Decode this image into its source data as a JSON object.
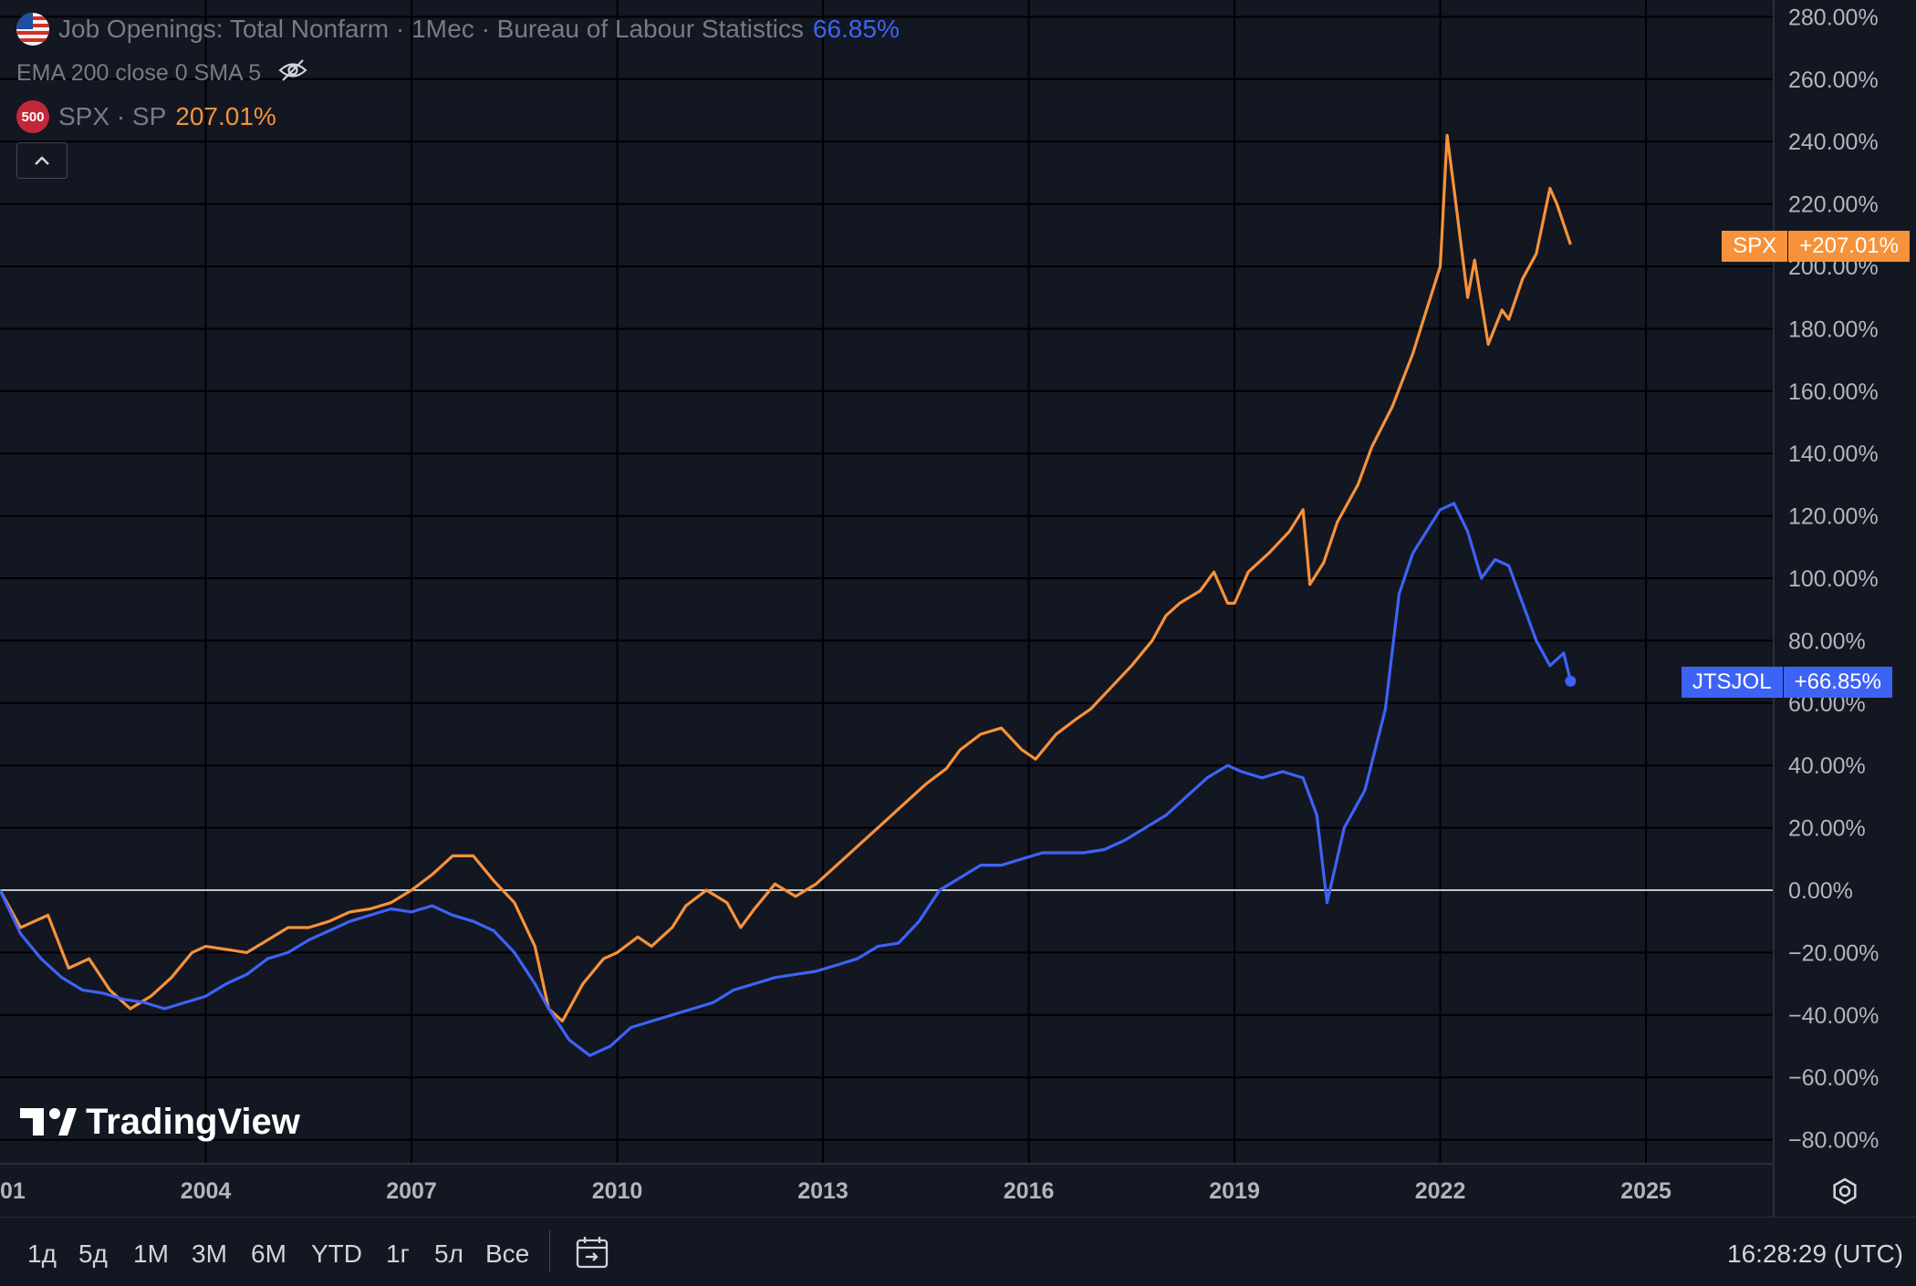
{
  "legend": {
    "main_title": "Job Openings: Total Nonfarm · 1Мес · Bureau of Labour Statistics",
    "main_value": "66.85%",
    "indicators": "EMA 200 close 0 SMA 5",
    "compare_symbol": "SPX · SP",
    "compare_badge": "500",
    "compare_value": "207.01%"
  },
  "price_tags": {
    "spx_name": "SPX",
    "spx_value": "+207.01%",
    "jts_name": "JTSJOL",
    "jts_value": "+66.85%"
  },
  "ranges": [
    "1д",
    "5д",
    "1М",
    "3М",
    "6М",
    "YTD",
    "1г",
    "5л",
    "Все"
  ],
  "clock": "16:28:29 (UTC)",
  "logo_text": "TradingView",
  "colors": {
    "spx": "#f7923a",
    "jts": "#3d63f5",
    "background": "#131722",
    "grid": "#000000",
    "zero": "#ffffff"
  },
  "chart_data": {
    "type": "line",
    "title": "",
    "xlabel": "",
    "ylabel": "",
    "ylim": [
      -88,
      286
    ],
    "x_ticks": [
      "01",
      "2004",
      "2007",
      "2010",
      "2013",
      "2016",
      "2019",
      "2022",
      "2025"
    ],
    "y_ticks": [
      "280.00%",
      "260.00%",
      "240.00%",
      "220.00%",
      "200.00%",
      "180.00%",
      "160.00%",
      "140.00%",
      "120.00%",
      "100.00%",
      "80.00%",
      "60.00%",
      "40.00%",
      "20.00%",
      "0.00%",
      "−20.00%",
      "−40.00%",
      "−60.00%",
      "−80.00%"
    ],
    "grid": true,
    "series": [
      {
        "name": "SPX",
        "points": [
          [
            2001.0,
            0
          ],
          [
            2001.3,
            -12
          ],
          [
            2001.7,
            -8
          ],
          [
            2002.0,
            -25
          ],
          [
            2002.3,
            -22
          ],
          [
            2002.6,
            -32
          ],
          [
            2002.9,
            -38
          ],
          [
            2003.2,
            -34
          ],
          [
            2003.5,
            -28
          ],
          [
            2003.8,
            -20
          ],
          [
            2004.0,
            -18
          ],
          [
            2004.3,
            -19
          ],
          [
            2004.6,
            -20
          ],
          [
            2004.9,
            -16
          ],
          [
            2005.2,
            -12
          ],
          [
            2005.5,
            -12
          ],
          [
            2005.8,
            -10
          ],
          [
            2006.1,
            -7
          ],
          [
            2006.4,
            -6
          ],
          [
            2006.7,
            -4
          ],
          [
            2007.0,
            0
          ],
          [
            2007.3,
            5
          ],
          [
            2007.6,
            11
          ],
          [
            2007.9,
            11
          ],
          [
            2008.2,
            3
          ],
          [
            2008.5,
            -4
          ],
          [
            2008.8,
            -18
          ],
          [
            2009.0,
            -38
          ],
          [
            2009.2,
            -42
          ],
          [
            2009.5,
            -30
          ],
          [
            2009.8,
            -22
          ],
          [
            2010.0,
            -20
          ],
          [
            2010.3,
            -15
          ],
          [
            2010.5,
            -18
          ],
          [
            2010.8,
            -12
          ],
          [
            2011.0,
            -5
          ],
          [
            2011.3,
            0
          ],
          [
            2011.6,
            -4
          ],
          [
            2011.8,
            -12
          ],
          [
            2012.0,
            -6
          ],
          [
            2012.3,
            2
          ],
          [
            2012.6,
            -2
          ],
          [
            2012.9,
            2
          ],
          [
            2013.0,
            4
          ],
          [
            2013.3,
            10
          ],
          [
            2013.6,
            16
          ],
          [
            2013.9,
            22
          ],
          [
            2014.2,
            28
          ],
          [
            2014.5,
            34
          ],
          [
            2014.8,
            39
          ],
          [
            2015.0,
            45
          ],
          [
            2015.3,
            50
          ],
          [
            2015.6,
            52
          ],
          [
            2015.9,
            45
          ],
          [
            2016.1,
            42
          ],
          [
            2016.4,
            50
          ],
          [
            2016.7,
            55
          ],
          [
            2016.9,
            58
          ],
          [
            2017.2,
            65
          ],
          [
            2017.5,
            72
          ],
          [
            2017.8,
            80
          ],
          [
            2018.0,
            88
          ],
          [
            2018.2,
            92
          ],
          [
            2018.5,
            96
          ],
          [
            2018.7,
            102
          ],
          [
            2018.9,
            92
          ],
          [
            2019.0,
            92
          ],
          [
            2019.2,
            102
          ],
          [
            2019.5,
            108
          ],
          [
            2019.8,
            115
          ],
          [
            2020.0,
            122
          ],
          [
            2020.1,
            98
          ],
          [
            2020.3,
            105
          ],
          [
            2020.5,
            118
          ],
          [
            2020.8,
            130
          ],
          [
            2021.0,
            142
          ],
          [
            2021.3,
            155
          ],
          [
            2021.6,
            172
          ],
          [
            2021.8,
            186
          ],
          [
            2022.0,
            200
          ],
          [
            2022.1,
            242
          ],
          [
            2022.2,
            225
          ],
          [
            2022.4,
            190
          ],
          [
            2022.5,
            202
          ],
          [
            2022.7,
            175
          ],
          [
            2022.9,
            186
          ],
          [
            2023.0,
            183
          ],
          [
            2023.2,
            196
          ],
          [
            2023.4,
            204
          ],
          [
            2023.6,
            225
          ],
          [
            2023.7,
            220
          ],
          [
            2023.9,
            207
          ]
        ]
      },
      {
        "name": "JTSJOL",
        "points": [
          [
            2001.0,
            0
          ],
          [
            2001.3,
            -14
          ],
          [
            2001.6,
            -22
          ],
          [
            2001.9,
            -28
          ],
          [
            2002.2,
            -32
          ],
          [
            2002.5,
            -33
          ],
          [
            2002.8,
            -35
          ],
          [
            2003.1,
            -36
          ],
          [
            2003.4,
            -38
          ],
          [
            2003.7,
            -36
          ],
          [
            2004.0,
            -34
          ],
          [
            2004.3,
            -30
          ],
          [
            2004.6,
            -27
          ],
          [
            2004.9,
            -22
          ],
          [
            2005.2,
            -20
          ],
          [
            2005.5,
            -16
          ],
          [
            2005.8,
            -13
          ],
          [
            2006.1,
            -10
          ],
          [
            2006.4,
            -8
          ],
          [
            2006.7,
            -6
          ],
          [
            2007.0,
            -7
          ],
          [
            2007.3,
            -5
          ],
          [
            2007.6,
            -8
          ],
          [
            2007.9,
            -10
          ],
          [
            2008.2,
            -13
          ],
          [
            2008.5,
            -20
          ],
          [
            2008.8,
            -30
          ],
          [
            2009.0,
            -38
          ],
          [
            2009.3,
            -48
          ],
          [
            2009.6,
            -53
          ],
          [
            2009.9,
            -50
          ],
          [
            2010.2,
            -44
          ],
          [
            2010.5,
            -42
          ],
          [
            2010.8,
            -40
          ],
          [
            2011.1,
            -38
          ],
          [
            2011.4,
            -36
          ],
          [
            2011.7,
            -32
          ],
          [
            2012.0,
            -30
          ],
          [
            2012.3,
            -28
          ],
          [
            2012.6,
            -27
          ],
          [
            2012.9,
            -26
          ],
          [
            2013.2,
            -24
          ],
          [
            2013.5,
            -22
          ],
          [
            2013.8,
            -18
          ],
          [
            2014.1,
            -17
          ],
          [
            2014.4,
            -10
          ],
          [
            2014.7,
            0
          ],
          [
            2015.0,
            4
          ],
          [
            2015.3,
            8
          ],
          [
            2015.6,
            8
          ],
          [
            2015.9,
            10
          ],
          [
            2016.2,
            12
          ],
          [
            2016.5,
            12
          ],
          [
            2016.8,
            12
          ],
          [
            2017.1,
            13
          ],
          [
            2017.4,
            16
          ],
          [
            2017.7,
            20
          ],
          [
            2018.0,
            24
          ],
          [
            2018.3,
            30
          ],
          [
            2018.6,
            36
          ],
          [
            2018.9,
            40
          ],
          [
            2019.1,
            38
          ],
          [
            2019.4,
            36
          ],
          [
            2019.7,
            38
          ],
          [
            2020.0,
            36
          ],
          [
            2020.2,
            24
          ],
          [
            2020.35,
            -4
          ],
          [
            2020.6,
            20
          ],
          [
            2020.9,
            32
          ],
          [
            2021.2,
            58
          ],
          [
            2021.4,
            95
          ],
          [
            2021.6,
            108
          ],
          [
            2021.8,
            115
          ],
          [
            2022.0,
            122
          ],
          [
            2022.2,
            124
          ],
          [
            2022.4,
            115
          ],
          [
            2022.6,
            100
          ],
          [
            2022.8,
            106
          ],
          [
            2023.0,
            104
          ],
          [
            2023.2,
            92
          ],
          [
            2023.4,
            80
          ],
          [
            2023.6,
            72
          ],
          [
            2023.8,
            76
          ],
          [
            2023.9,
            67
          ]
        ]
      }
    ]
  }
}
